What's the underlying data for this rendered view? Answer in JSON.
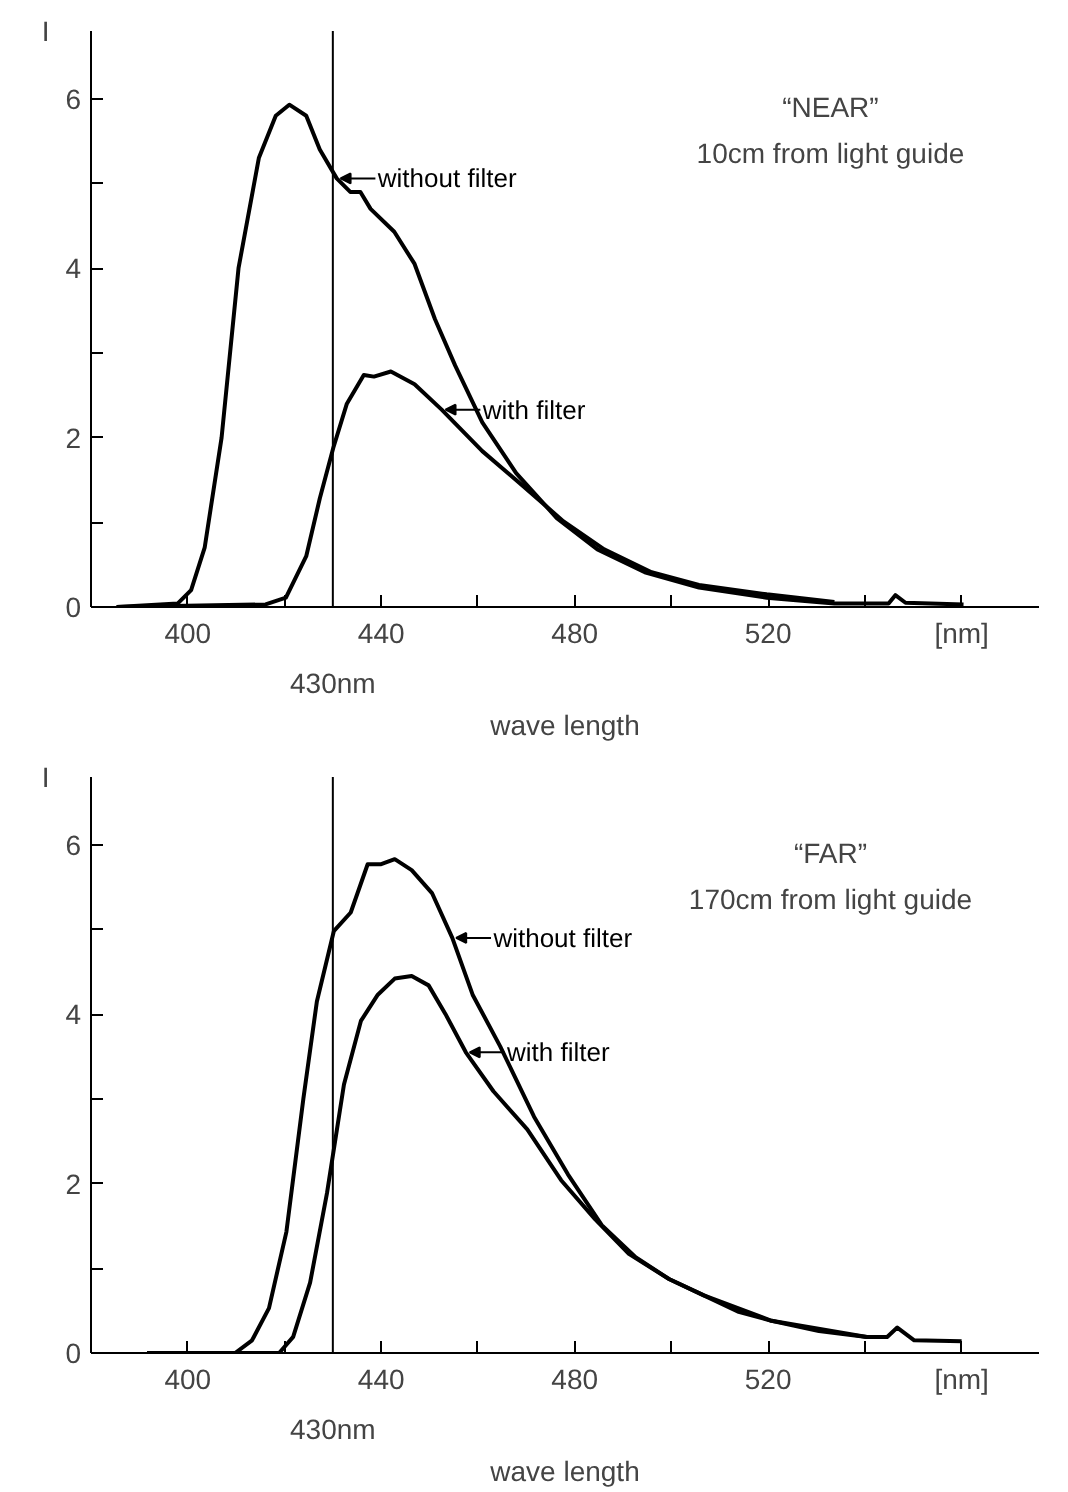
{
  "chart_data": [
    {
      "type": "line",
      "xlabel": "wave length",
      "ylabel": "I",
      "annotations": [
        "“NEAR”",
        "10cm from light guide"
      ],
      "xlim": [
        380,
        576
      ],
      "ylim": [
        0,
        6.8
      ],
      "xticks": [
        400,
        {
          "value": 420,
          "label": null
        },
        440,
        {
          "value": 460,
          "label": null
        },
        480,
        {
          "value": 500,
          "label": null
        },
        520,
        {
          "value": 540,
          "label": null
        },
        {
          "value": 560,
          "label": "[nm]"
        }
      ],
      "yticks": [
        0,
        {
          "value": 1,
          "label": null
        },
        2,
        {
          "value": 3,
          "label": null
        },
        4,
        {
          "value": 5,
          "label": null
        },
        6
      ],
      "ref_lines": [
        {
          "axis": "x",
          "value": 430,
          "label": "430nm"
        }
      ],
      "grid": false,
      "legend": "top",
      "series": [
        {
          "name": "without filter",
          "color": "#000000",
          "x": [
            385.3,
            397.9,
            400.7,
            403.5,
            407,
            410.5,
            414.7,
            418.2,
            421,
            424.5,
            427.3,
            430.8,
            433.6,
            435.7,
            437.8,
            442.7,
            446.9,
            451.1,
            455.3,
            460.9,
            467.9,
            476.3,
            484.7,
            494.5,
            505.7,
            519.7,
            533.7,
            544.9,
            546.3,
            548.4,
            560.4
          ],
          "values": [
            0,
            0.04,
            0.2,
            0.7,
            2.0,
            4.0,
            5.3,
            5.8,
            5.93,
            5.8,
            5.4,
            5.06,
            4.9,
            4.9,
            4.7,
            4.43,
            4.05,
            3.4,
            2.85,
            2.18,
            1.58,
            1.05,
            0.68,
            0.41,
            0.23,
            0.11,
            0.04,
            0.04,
            0.14,
            0.05,
            0.03
          ]
        },
        {
          "name": "with filter",
          "color": "#000000",
          "x": [
            385.3,
            416.1,
            420.3,
            424.5,
            427.3,
            430.1,
            432.9,
            436.4,
            438.5,
            442,
            446.9,
            452.5,
            460.9,
            469.3,
            477.7,
            486.1,
            495.9,
            505.7,
            519.7,
            533.7
          ],
          "values": [
            0,
            0.03,
            0.11,
            0.6,
            1.28,
            1.88,
            2.4,
            2.74,
            2.72,
            2.78,
            2.63,
            2.33,
            1.84,
            1.43,
            1.01,
            0.68,
            0.41,
            0.26,
            0.15,
            0.06
          ]
        }
      ]
    },
    {
      "type": "line",
      "xlabel": "wave length",
      "ylabel": "I",
      "annotations": [
        "“FAR”",
        "170cm from light guide"
      ],
      "xlim": [
        380,
        576
      ],
      "ylim": [
        0,
        6.8
      ],
      "xticks": [
        400,
        {
          "value": 420,
          "label": null
        },
        440,
        {
          "value": 460,
          "label": null
        },
        480,
        {
          "value": 500,
          "label": null
        },
        520,
        {
          "value": 540,
          "label": null
        },
        {
          "value": 560,
          "label": "[nm]"
        }
      ],
      "yticks": [
        0,
        {
          "value": 1,
          "label": null
        },
        2,
        {
          "value": 3,
          "label": null
        },
        4,
        {
          "value": 5,
          "label": null
        },
        6
      ],
      "ref_lines": [
        {
          "axis": "x",
          "value": 430,
          "label": "430nm"
        }
      ],
      "grid": false,
      "legend": "top right",
      "series": [
        {
          "name": "without filter",
          "color": "#000000",
          "x": [
            391.6,
            409.8,
            413.3,
            416.8,
            420.4,
            423.9,
            426.7,
            430.2,
            433.7,
            437.2,
            440,
            442.8,
            446.3,
            450.5,
            454.7,
            458.9,
            464.6,
            471.6,
            478.6,
            485.6,
            492.6,
            499.6,
            506.7,
            513.7,
            520.7,
            530.5,
            540.4,
            544.6,
            546.7,
            550.2,
            560
          ],
          "values": [
            0,
            0,
            0.15,
            0.53,
            1.43,
            3.0,
            4.15,
            4.98,
            5.2,
            5.77,
            5.77,
            5.83,
            5.7,
            5.43,
            4.9,
            4.23,
            3.62,
            2.79,
            2.11,
            1.51,
            1.13,
            0.87,
            0.68,
            0.49,
            0.38,
            0.26,
            0.19,
            0.19,
            0.3,
            0.15,
            0.14
          ]
        },
        {
          "name": "with filter",
          "color": "#000000",
          "x": [
            391.6,
            418.9,
            421.8,
            425.3,
            428.8,
            432.3,
            435.8,
            439.3,
            442.8,
            446.3,
            449.8,
            453.3,
            457.5,
            463.2,
            470.2,
            477.2,
            484.2,
            491.2,
            499.6,
            506.7,
            520.7,
            540.4
          ],
          "values": [
            0,
            0,
            0.19,
            0.83,
            1.89,
            3.17,
            3.92,
            4.23,
            4.42,
            4.45,
            4.34,
            4.0,
            3.55,
            3.09,
            2.64,
            2.04,
            1.58,
            1.17,
            0.87,
            0.68,
            0.38,
            0.19
          ]
        }
      ]
    }
  ]
}
